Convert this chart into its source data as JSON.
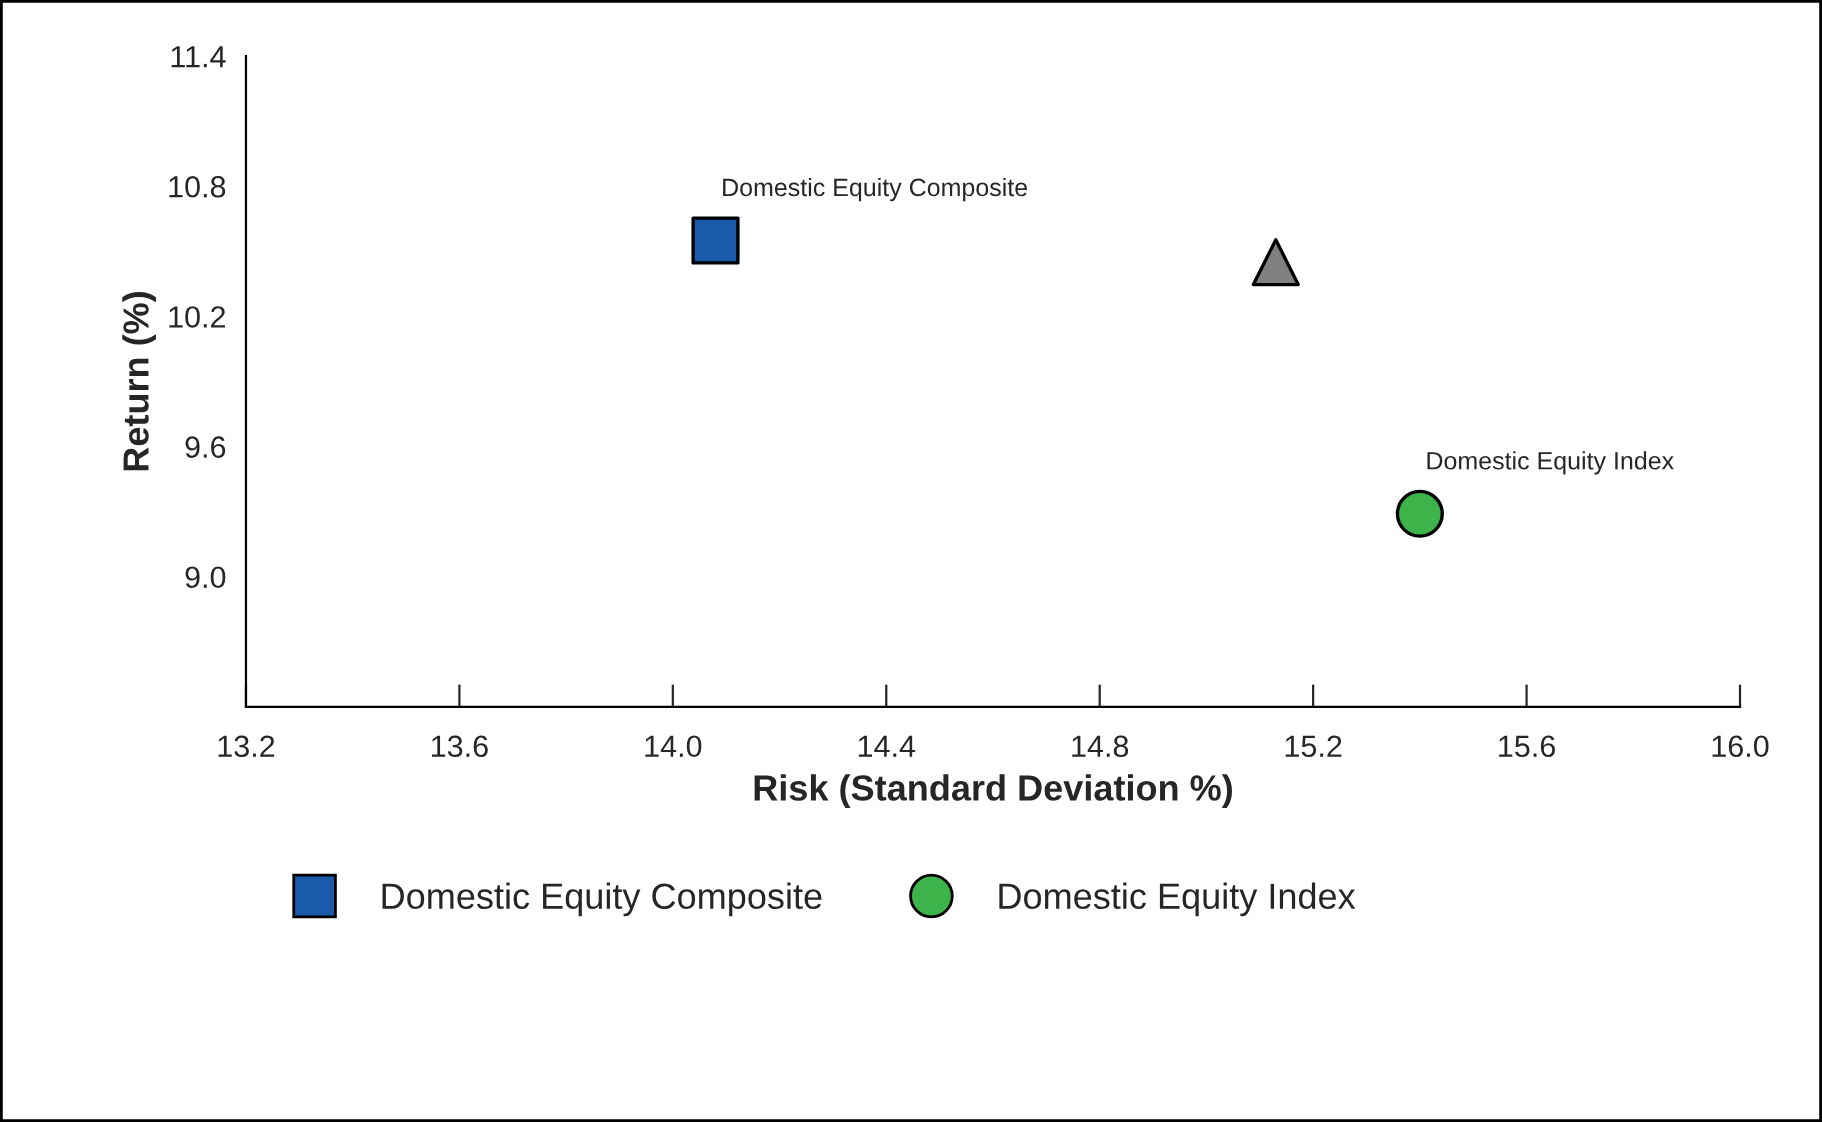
{
  "chart_data": {
    "type": "scatter",
    "xlabel": "Risk (Standard Deviation %)",
    "ylabel": "Return (%)",
    "xlim": [
      13.2,
      16.0
    ],
    "xticks": [
      13.2,
      13.6,
      {
        "value": 14,
        "label": "14.0"
      },
      14.4,
      14.8,
      15.2,
      15.6,
      {
        "value": 16,
        "label": "16.0"
      }
    ],
    "ylim": [
      8.4,
      11.4
    ],
    "yticks": [
      {
        "value": 9,
        "label": "9.0"
      },
      9.6,
      10.2,
      10.8,
      11.4
    ],
    "grid": false,
    "legend": "bottom",
    "series": [
      {
        "name": "Domestic Equity Composite",
        "color": "#1a5aab",
        "marker": "square",
        "x": [
          14.08
        ],
        "values": [
          10.55
        ]
      },
      {
        "name": "Domestic Equity Index",
        "color": "#3cb44a",
        "marker": "circle",
        "x": [
          15.4
        ],
        "values": [
          9.29
        ]
      },
      {
        "color": "#808080",
        "marker": "triangle",
        "x": [
          15.13
        ],
        "values": [
          10.45
        ]
      }
    ],
    "annotations": [
      {
        "text": "Domestic Equity Composite",
        "x": 14.08,
        "y": 10.55
      },
      {
        "text": "Domestic Equity Index",
        "x": 15.4,
        "y": 9.29
      }
    ]
  }
}
